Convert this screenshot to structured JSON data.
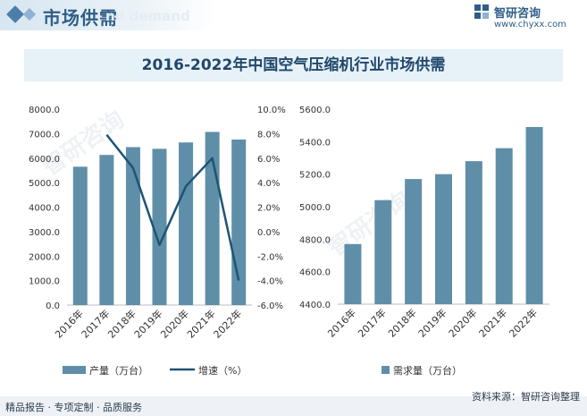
{
  "header": {
    "title": "市场供需",
    "subtitle": "nd demand"
  },
  "brand": {
    "name": "智研咨询",
    "url": "www.chyxx.com"
  },
  "footer": {
    "left": "精品报告 · 专项定制 · 品质服务",
    "right": "资料来源：智研咨询整理"
  },
  "colors": {
    "bar": "#5f8fa8",
    "line": "#1d5574",
    "title_band": "#e6f1f8"
  },
  "chart_data": [
    {
      "type": "bar",
      "title": "2016-2022年中国空气压缩机行业市场供需",
      "categories": [
        "2016年",
        "2017年",
        "2018年",
        "2019年",
        "2020年",
        "2021年",
        "2022年"
      ],
      "series": [
        {
          "name": "产量（万台）",
          "type": "bar",
          "axis": "left",
          "values": [
            5650,
            6130,
            6450,
            6380,
            6640,
            7070,
            6760
          ]
        },
        {
          "name": "增速（%）",
          "type": "line",
          "axis": "right",
          "values": [
            null,
            7.9,
            5.2,
            -1.1,
            3.7,
            6.0,
            -4.0
          ]
        }
      ],
      "y_left": {
        "min": 0,
        "max": 8000,
        "ticks": [
          "0.0",
          "1000.0",
          "2000.0",
          "3000.0",
          "4000.0",
          "5000.0",
          "6000.0",
          "7000.0",
          "8000.0"
        ]
      },
      "y_right": {
        "min": -6,
        "max": 10,
        "ticks": [
          "-6.0%",
          "-4.0%",
          "-2.0%",
          "0.0%",
          "2.0%",
          "4.0%",
          "6.0%",
          "8.0%",
          "10.0%"
        ]
      },
      "legend": [
        "产量（万台）",
        "增速（%）"
      ],
      "legend_position": "bottom"
    },
    {
      "type": "bar",
      "categories": [
        "2016年",
        "2017年",
        "2018年",
        "2019年",
        "2020年",
        "2021年",
        "2022年"
      ],
      "series": [
        {
          "name": "需求量（万台）",
          "values": [
            4770,
            5040,
            5170,
            5200,
            5280,
            5360,
            5490
          ]
        }
      ],
      "y": {
        "min": 4400,
        "max": 5600,
        "ticks": [
          "4400.0",
          "4600.0",
          "4800.0",
          "5000.0",
          "5200.0",
          "5400.0",
          "5600.0"
        ]
      },
      "legend": [
        "需求量（万台）"
      ],
      "legend_position": "bottom"
    }
  ]
}
